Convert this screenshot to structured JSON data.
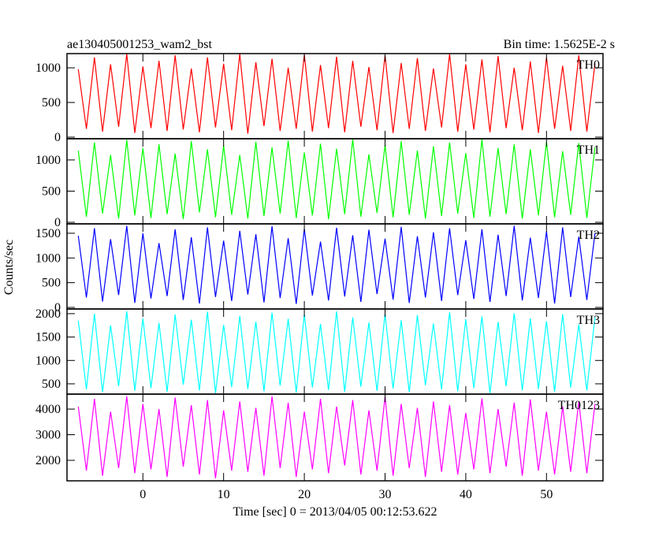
{
  "ylabel": "Counts/sec",
  "chart_data": [
    {
      "type": "line",
      "title": "ae130405001253_wam2_bst",
      "subtitle": "Bin time: 1.5625E-2 s",
      "xlim": [
        -9.4,
        57
      ],
      "xticks": [
        0,
        10,
        20,
        30,
        40,
        50
      ],
      "ylim": [
        -23,
        1205
      ],
      "yticks": [
        0,
        500,
        1000
      ],
      "x": [
        -8,
        -7,
        -6,
        -5,
        -4,
        -3,
        -2,
        -1,
        0,
        1,
        2,
        3,
        4,
        5,
        6,
        7,
        8,
        9,
        10,
        11,
        12,
        13,
        14,
        15,
        16,
        17,
        18,
        19,
        20,
        21,
        22,
        23,
        24,
        25,
        26,
        27,
        28,
        29,
        30,
        31,
        32,
        33,
        34,
        35,
        36,
        37,
        38,
        39,
        40,
        41,
        42,
        43,
        44,
        45,
        46,
        47,
        48,
        49,
        50,
        51,
        52,
        53,
        54,
        55,
        56
      ],
      "series": [
        {
          "name": "TH0",
          "color": "#ff0000",
          "values": [
            980,
            120,
            1150,
            80,
            1050,
            150,
            1200,
            60,
            1020,
            130,
            1100,
            90,
            1180,
            110,
            990,
            70,
            1150,
            140,
            1060,
            100,
            1200,
            50,
            1080,
            160,
            1130,
            90,
            1000,
            120,
            1190,
            80,
            1040,
            130,
            1160,
            70,
            1100,
            150,
            1010,
            100,
            1180,
            60,
            1070,
            120,
            1140,
            90,
            990,
            140,
            1200,
            80,
            1050,
            110,
            1120,
            70,
            1170,
            130,
            1000,
            100,
            1090,
            60,
            1150,
            120,
            1030,
            90,
            1180,
            80,
            1060
          ]
        }
      ]
    },
    {
      "type": "line",
      "xlim": [
        -9.4,
        57
      ],
      "xticks": [
        0,
        10,
        20,
        30,
        40,
        50
      ],
      "ylim": [
        -25,
        1340
      ],
      "yticks": [
        0,
        500,
        1000
      ],
      "x": [
        -8,
        -7,
        -6,
        -5,
        -4,
        -3,
        -2,
        -1,
        0,
        1,
        2,
        3,
        4,
        5,
        6,
        7,
        8,
        9,
        10,
        11,
        12,
        13,
        14,
        15,
        16,
        17,
        18,
        19,
        20,
        21,
        22,
        23,
        24,
        25,
        26,
        27,
        28,
        29,
        30,
        31,
        32,
        33,
        34,
        35,
        36,
        37,
        38,
        39,
        40,
        41,
        42,
        43,
        44,
        45,
        46,
        47,
        48,
        49,
        50,
        51,
        52,
        53,
        54,
        55,
        56
      ],
      "series": [
        {
          "name": "TH1",
          "color": "#00ff00",
          "values": [
            1150,
            90,
            1280,
            140,
            1080,
            60,
            1320,
            110,
            1190,
            70,
            1250,
            130,
            1100,
            50,
            1300,
            160,
            1170,
            80,
            1230,
            120,
            1080,
            60,
            1290,
            100,
            1200,
            140,
            1310,
            70,
            1120,
            110,
            1260,
            50,
            1180,
            130,
            1330,
            90,
            1090,
            150,
            1240,
            80,
            1300,
            120,
            1150,
            60,
            1220,
            100,
            1280,
            140,
            1110,
            70,
            1330,
            90,
            1190,
            130,
            1250,
            60,
            1170,
            110,
            1290,
            80,
            1140,
            120,
            1270,
            70,
            1200
          ]
        }
      ]
    },
    {
      "type": "line",
      "xlim": [
        -9.4,
        57
      ],
      "xticks": [
        0,
        10,
        20,
        30,
        40,
        50
      ],
      "ylim": [
        -32,
        1690
      ],
      "yticks": [
        0,
        500,
        1000,
        1500
      ],
      "x": [
        -8,
        -7,
        -6,
        -5,
        -4,
        -3,
        -2,
        -1,
        0,
        1,
        2,
        3,
        4,
        5,
        6,
        7,
        8,
        9,
        10,
        11,
        12,
        13,
        14,
        15,
        16,
        17,
        18,
        19,
        20,
        21,
        22,
        23,
        24,
        25,
        26,
        27,
        28,
        29,
        30,
        31,
        32,
        33,
        34,
        35,
        36,
        37,
        38,
        39,
        40,
        41,
        42,
        43,
        44,
        45,
        46,
        47,
        48,
        49,
        50,
        51,
        52,
        53,
        54,
        55,
        56
      ],
      "series": [
        {
          "name": "TH2",
          "color": "#0000ff",
          "values": [
            1450,
            200,
            1600,
            120,
            1380,
            250,
            1650,
            90,
            1500,
            180,
            1300,
            230,
            1580,
            150,
            1420,
            80,
            1620,
            210,
            1350,
            130,
            1550,
            260,
            1480,
            100,
            1640,
            190,
            1400,
            70,
            1590,
            240,
            1330,
            140,
            1610,
            220,
            1460,
            110,
            1570,
            270,
            1390,
            160,
            1630,
            90,
            1440,
            200,
            1520,
            130,
            1600,
            250,
            1360,
            170,
            1580,
            110,
            1470,
            230,
            1650,
            140,
            1410,
            190,
            1540,
            80,
            1620,
            210,
            1430,
            150,
            1500
          ]
        }
      ]
    },
    {
      "type": "line",
      "xlim": [
        -9.4,
        57
      ],
      "xticks": [
        0,
        10,
        20,
        30,
        40,
        50
      ],
      "ylim": [
        280,
        2100
      ],
      "yticks": [
        500,
        1000,
        1500,
        2000
      ],
      "x": [
        -8,
        -7,
        -6,
        -5,
        -4,
        -3,
        -2,
        -1,
        0,
        1,
        2,
        3,
        4,
        5,
        6,
        7,
        8,
        9,
        10,
        11,
        12,
        13,
        14,
        15,
        16,
        17,
        18,
        19,
        20,
        21,
        22,
        23,
        24,
        25,
        26,
        27,
        28,
        29,
        30,
        31,
        32,
        33,
        34,
        35,
        36,
        37,
        38,
        39,
        40,
        41,
        42,
        43,
        44,
        45,
        46,
        47,
        48,
        49,
        50,
        51,
        52,
        53,
        54,
        55,
        56
      ],
      "series": [
        {
          "name": "TH3",
          "color": "#00ffff",
          "values": [
            1850,
            380,
            2000,
            320,
            1750,
            450,
            2050,
            350,
            1900,
            410,
            1800,
            330,
            1980,
            480,
            1870,
            360,
            2040,
            300,
            1760,
            430,
            1950,
            390,
            1830,
            340,
            2020,
            460,
            1890,
            310,
            1990,
            420,
            1780,
            370,
            2050,
            330,
            1920,
            440,
            1810,
            350,
            2000,
            400,
            1860,
            320,
            1970,
            470,
            1790,
            380,
            2030,
            340,
            1880,
            410,
            1940,
            300,
            1820,
            450,
            2010,
            360,
            1900,
            390,
            1840,
            330,
            1990,
            420,
            1770,
            360,
            1920
          ]
        }
      ]
    },
    {
      "type": "line",
      "xlabel": "Time [sec] 0 = 2013/04/05 00:12:53.622",
      "xlim": [
        -9.4,
        57
      ],
      "xticks": [
        0,
        10,
        20,
        30,
        40,
        50
      ],
      "ylim": [
        1200,
        4585
      ],
      "yticks": [
        2000,
        3000,
        4000
      ],
      "x": [
        -8,
        -7,
        -6,
        -5,
        -4,
        -3,
        -2,
        -1,
        0,
        1,
        2,
        3,
        4,
        5,
        6,
        7,
        8,
        9,
        10,
        11,
        12,
        13,
        14,
        15,
        16,
        17,
        18,
        19,
        20,
        21,
        22,
        23,
        24,
        25,
        26,
        27,
        28,
        29,
        30,
        31,
        32,
        33,
        34,
        35,
        36,
        37,
        38,
        39,
        40,
        41,
        42,
        43,
        44,
        45,
        46,
        47,
        48,
        49,
        50,
        51,
        52,
        53,
        54,
        55,
        56
      ],
      "series": [
        {
          "name": "TH0123",
          "color": "#ff00ff",
          "values": [
            4100,
            1600,
            4400,
            1400,
            3900,
            1700,
            4500,
            1500,
            4200,
            1650,
            4000,
            1350,
            4450,
            1750,
            4150,
            1450,
            4350,
            1300,
            3950,
            1600,
            4300,
            1550,
            4050,
            1400,
            4500,
            1700,
            4250,
            1350,
            3900,
            1650,
            4400,
            1500,
            4100,
            1800,
            4350,
            1450,
            3950,
            1600,
            4480,
            1400,
            4200,
            1700,
            4050,
            1350,
            4300,
            1550,
            4150,
            1450,
            3850,
            1650,
            4420,
            1500,
            4000,
            1750,
            4250,
            1400,
            4380,
            1600,
            3900,
            1450,
            4100,
            1550,
            4300,
            1500,
            4200
          ]
        }
      ]
    }
  ]
}
